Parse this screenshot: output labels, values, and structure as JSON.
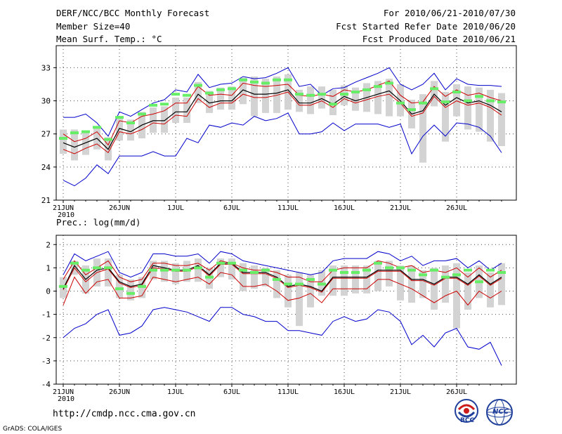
{
  "header": {
    "title_left_1": "DERF/NCC/BCC Monthly Forecast",
    "title_left_2": "Member Size=40",
    "title_left_3": "Mean Surf. Temp.: °C",
    "title_right_1": "For 2010/06/21-2010/07/30",
    "title_right_2": "Fcst Started Refer Date 2010/06/20",
    "title_right_3": "Fcst Produced Date 2010/06/21"
  },
  "panel2_title": "Prec.: log(mm/d)",
  "footer": {
    "url": "http://cmdp.ncc.cma.gov.cn",
    "credit": "GrADS: COLA/IGES",
    "logo1_label": "BCC",
    "logo2_label": "NCC"
  },
  "colors": {
    "max_line": "#0000cc",
    "min_line": "#0000cc",
    "mean_line": "#000000",
    "upper_line": "#cc0000",
    "lower_line": "#cc0000",
    "box": "#d3d3d3",
    "marker": "#66ee66"
  },
  "chart_data": [
    {
      "type": "line",
      "title": "Mean Surf. Temp.: °C",
      "x_ticks": [
        "21JUN",
        "26JUN",
        "1JUL",
        "6JUL",
        "11JUL",
        "16JUL",
        "21JUL",
        "26JUL"
      ],
      "x_tick_days": [
        0,
        5,
        10,
        15,
        20,
        25,
        30,
        35
      ],
      "x_sublabel": "2010",
      "y_ticks": [
        21,
        24,
        27,
        30,
        33
      ],
      "ylim": [
        21,
        35
      ],
      "series": [
        {
          "name": "max",
          "values": [
            28.5,
            28.5,
            28.8,
            28.0,
            26.8,
            29.0,
            28.6,
            29.2,
            29.8,
            30.1,
            31.0,
            30.8,
            32.4,
            31.2,
            31.5,
            31.6,
            32.2,
            32.0,
            32.1,
            32.5,
            33.0,
            31.3,
            31.5,
            30.5,
            31.1,
            31.2,
            31.7,
            32.1,
            32.5,
            33.0,
            31.5,
            31.0,
            31.5,
            32.5,
            31.0,
            32.0,
            31.5,
            31.4,
            31.4,
            31.3
          ]
        },
        {
          "name": "upper",
          "values": [
            27.0,
            26.3,
            26.6,
            27.2,
            26.0,
            28.2,
            28.0,
            28.6,
            28.8,
            29.1,
            29.8,
            29.8,
            31.3,
            30.5,
            30.6,
            30.5,
            31.6,
            31.4,
            31.3,
            31.4,
            31.5,
            30.5,
            30.4,
            30.6,
            30.4,
            31.0,
            30.8,
            31.0,
            31.4,
            31.8,
            30.5,
            29.8,
            29.9,
            31.3,
            30.4,
            31.0,
            30.5,
            30.7,
            30.3,
            30.0
          ]
        },
        {
          "name": "mean",
          "values": [
            26.2,
            25.8,
            26.2,
            26.6,
            25.6,
            27.5,
            27.2,
            27.8,
            28.2,
            28.2,
            29.0,
            29.0,
            30.6,
            29.8,
            30.0,
            30.0,
            31.0,
            30.6,
            30.6,
            30.7,
            31.0,
            29.8,
            29.8,
            30.2,
            29.7,
            30.4,
            30.0,
            30.3,
            30.6,
            30.9,
            30.0,
            28.8,
            29.1,
            30.6,
            29.6,
            30.3,
            29.8,
            30.0,
            29.6,
            29.0
          ]
        },
        {
          "name": "lower",
          "values": [
            25.6,
            25.2,
            25.7,
            26.1,
            25.3,
            27.2,
            27.0,
            27.4,
            28.0,
            27.9,
            28.7,
            28.6,
            30.2,
            29.4,
            29.8,
            29.8,
            30.6,
            30.3,
            30.3,
            30.5,
            30.8,
            29.6,
            29.6,
            30.0,
            29.4,
            30.2,
            29.8,
            30.1,
            30.4,
            30.6,
            29.8,
            28.6,
            28.9,
            30.4,
            29.4,
            30.0,
            29.6,
            29.8,
            29.4,
            28.7
          ]
        },
        {
          "name": "min",
          "values": [
            22.8,
            22.3,
            23.0,
            24.2,
            23.4,
            25.0,
            25.0,
            25.0,
            25.4,
            25.0,
            25.0,
            26.6,
            26.2,
            27.8,
            27.6,
            28.0,
            27.8,
            28.6,
            28.2,
            28.4,
            28.9,
            27.0,
            27.0,
            27.2,
            28.0,
            27.3,
            27.9,
            27.9,
            27.9,
            27.6,
            27.9,
            25.2,
            26.8,
            27.8,
            26.8,
            28.0,
            27.9,
            27.6,
            26.8,
            25.3
          ]
        },
        {
          "name": "box_top",
          "values": [
            27.4,
            27.4,
            27.1,
            27.7,
            26.7,
            28.6,
            28.3,
            29.0,
            29.4,
            29.5,
            30.3,
            30.3,
            31.7,
            30.9,
            31.2,
            31.3,
            32.1,
            32.2,
            32.0,
            32.2,
            32.4,
            31.0,
            31.3,
            31.3,
            31.0,
            31.4,
            31.2,
            31.6,
            31.8,
            32.0,
            31.5,
            30.1,
            30.6,
            31.8,
            30.8,
            31.5,
            31.3,
            31.2,
            31.0,
            30.7
          ]
        },
        {
          "name": "box_bottom",
          "values": [
            25.2,
            24.6,
            25.1,
            25.6,
            24.6,
            26.4,
            26.4,
            26.6,
            27.1,
            27.1,
            28.0,
            28.0,
            29.8,
            28.9,
            29.2,
            29.2,
            29.7,
            28.6,
            28.9,
            28.9,
            29.2,
            29.0,
            28.8,
            29.3,
            28.7,
            29.6,
            29.1,
            29.0,
            28.8,
            28.6,
            28.6,
            27.5,
            24.4,
            29.5,
            26.3,
            28.6,
            27.4,
            27.2,
            26.3,
            25.9
          ]
        },
        {
          "name": "marker",
          "values": [
            26.6,
            27.1,
            27.2,
            27.6,
            26.5,
            28.5,
            28.0,
            28.8,
            29.6,
            29.7,
            30.6,
            30.5,
            31.4,
            30.7,
            31.0,
            31.1,
            31.9,
            31.7,
            31.6,
            31.9,
            31.9,
            30.6,
            30.5,
            30.6,
            29.7,
            30.6,
            30.8,
            31.0,
            31.3,
            31.6,
            29.8,
            29.2,
            29.8,
            31.1,
            29.9,
            30.8,
            30.0,
            30.4,
            30.0,
            29.9
          ]
        }
      ]
    },
    {
      "type": "line",
      "title": "Prec.: log(mm/d)",
      "x_ticks": [
        "21JUN",
        "26JUN",
        "1JUL",
        "6JUL",
        "11JUL",
        "16JUL",
        "21JUL",
        "26JUL"
      ],
      "x_tick_days": [
        0,
        5,
        10,
        15,
        20,
        25,
        30,
        35
      ],
      "x_sublabel": "2010",
      "y_ticks": [
        -4,
        -3,
        -2,
        -1,
        0,
        1,
        2
      ],
      "ylim": [
        -4,
        2.4
      ],
      "series": [
        {
          "name": "max",
          "values": [
            0.7,
            1.6,
            1.3,
            1.5,
            1.7,
            0.8,
            0.6,
            0.8,
            1.6,
            1.6,
            1.5,
            1.5,
            1.6,
            1.2,
            1.7,
            1.6,
            1.3,
            1.2,
            1.1,
            1.0,
            0.9,
            0.8,
            0.7,
            0.8,
            1.3,
            1.4,
            1.4,
            1.4,
            1.7,
            1.6,
            1.3,
            1.5,
            1.1,
            1.3,
            1.3,
            1.4,
            1.0,
            1.3,
            0.9,
            1.2
          ]
        },
        {
          "name": "upper",
          "values": [
            0.5,
            1.3,
            0.7,
            1.0,
            1.3,
            0.6,
            0.4,
            0.5,
            1.2,
            1.2,
            1.1,
            1.1,
            1.2,
            0.9,
            1.3,
            1.2,
            1.0,
            0.9,
            0.9,
            0.8,
            0.6,
            0.6,
            0.4,
            0.4,
            0.9,
            1.0,
            1.0,
            1.0,
            1.3,
            1.2,
            1.0,
            1.1,
            0.8,
            0.9,
            0.8,
            1.0,
            0.6,
            1.0,
            0.6,
            0.9
          ]
        },
        {
          "name": "mean",
          "values": [
            0.1,
            1.1,
            0.5,
            0.9,
            1.0,
            0.4,
            0.2,
            0.3,
            1.1,
            1.0,
            0.9,
            0.9,
            1.1,
            0.7,
            1.2,
            1.2,
            0.8,
            0.8,
            0.8,
            0.6,
            0.2,
            0.3,
            0.2,
            0.0,
            0.6,
            0.6,
            0.6,
            0.6,
            0.9,
            0.9,
            0.9,
            0.5,
            0.5,
            0.3,
            0.6,
            0.6,
            0.3,
            0.7,
            0.3,
            0.6
          ]
        },
        {
          "name": "lower",
          "values": [
            0.05,
            1.0,
            0.4,
            0.8,
            0.95,
            0.35,
            0.15,
            0.25,
            1.0,
            0.95,
            0.85,
            0.85,
            1.05,
            0.65,
            1.15,
            1.15,
            0.75,
            0.75,
            0.75,
            0.55,
            0.15,
            0.25,
            0.15,
            -0.05,
            0.55,
            0.55,
            0.55,
            0.55,
            0.85,
            0.85,
            0.85,
            0.45,
            0.45,
            0.25,
            0.55,
            0.55,
            0.25,
            0.65,
            0.25,
            0.55
          ]
        },
        {
          "name": "min_red",
          "values": [
            -0.6,
            0.6,
            -0.1,
            0.4,
            0.5,
            -0.3,
            -0.3,
            -0.2,
            0.6,
            0.5,
            0.4,
            0.5,
            0.6,
            0.3,
            0.8,
            0.7,
            0.2,
            0.2,
            0.3,
            0.0,
            -0.4,
            -0.3,
            -0.1,
            -0.5,
            0.1,
            0.1,
            0.1,
            0.1,
            0.5,
            0.5,
            0.3,
            0.1,
            -0.2,
            -0.5,
            -0.2,
            0.0,
            -0.6,
            0.0,
            -0.3,
            0.0
          ]
        },
        {
          "name": "min",
          "values": [
            -2.0,
            -1.6,
            -1.4,
            -1.0,
            -0.8,
            -1.9,
            -1.8,
            -1.5,
            -0.8,
            -0.7,
            -0.8,
            -0.9,
            -1.1,
            -1.3,
            -0.7,
            -0.7,
            -1.0,
            -1.1,
            -1.3,
            -1.3,
            -1.7,
            -1.7,
            -1.8,
            -1.9,
            -1.3,
            -1.1,
            -1.3,
            -1.2,
            -0.8,
            -0.9,
            -1.3,
            -2.3,
            -1.9,
            -2.4,
            -1.8,
            -1.6,
            -2.4,
            -2.5,
            -2.2,
            -3.2
          ]
        },
        {
          "name": "box_top",
          "values": [
            0.6,
            1.3,
            1.1,
            1.4,
            1.4,
            0.7,
            0.5,
            0.6,
            1.3,
            1.3,
            1.2,
            1.3,
            1.4,
            1.0,
            1.4,
            1.4,
            1.2,
            1.1,
            1.0,
            0.9,
            0.7,
            0.8,
            0.7,
            0.9,
            1.1,
            1.1,
            1.1,
            1.1,
            1.3,
            1.3,
            1.1,
            1.1,
            0.9,
            1.0,
            1.1,
            1.2,
            0.8,
            1.1,
            0.8,
            1.2
          ]
        },
        {
          "name": "box_bottom",
          "values": [
            -0.3,
            0.7,
            -0.1,
            0.2,
            0.2,
            -0.3,
            -0.4,
            -0.3,
            0.5,
            0.4,
            0.3,
            0.4,
            0.4,
            0.1,
            0.6,
            0.5,
            0.0,
            0.1,
            0.2,
            -0.3,
            -0.7,
            -1.5,
            -0.7,
            -0.2,
            -0.2,
            -0.2,
            -0.1,
            -0.1,
            0.0,
            0.2,
            -0.4,
            -0.5,
            -0.3,
            -0.8,
            -0.5,
            -1.6,
            -0.8,
            -0.3,
            -0.7,
            -0.6
          ]
        },
        {
          "name": "marker",
          "values": [
            0.2,
            1.2,
            0.9,
            1.0,
            1.0,
            0.1,
            -0.1,
            0.2,
            0.9,
            0.9,
            0.9,
            0.9,
            1.0,
            0.6,
            1.2,
            1.2,
            0.9,
            0.8,
            0.9,
            0.5,
            0.3,
            0.3,
            0.5,
            0.3,
            0.9,
            0.8,
            0.8,
            0.9,
            1.2,
            1.0,
            1.0,
            0.9,
            0.7,
            0.9,
            0.6,
            0.7,
            0.9,
            0.4,
            0.9,
            0.8
          ]
        }
      ]
    }
  ]
}
